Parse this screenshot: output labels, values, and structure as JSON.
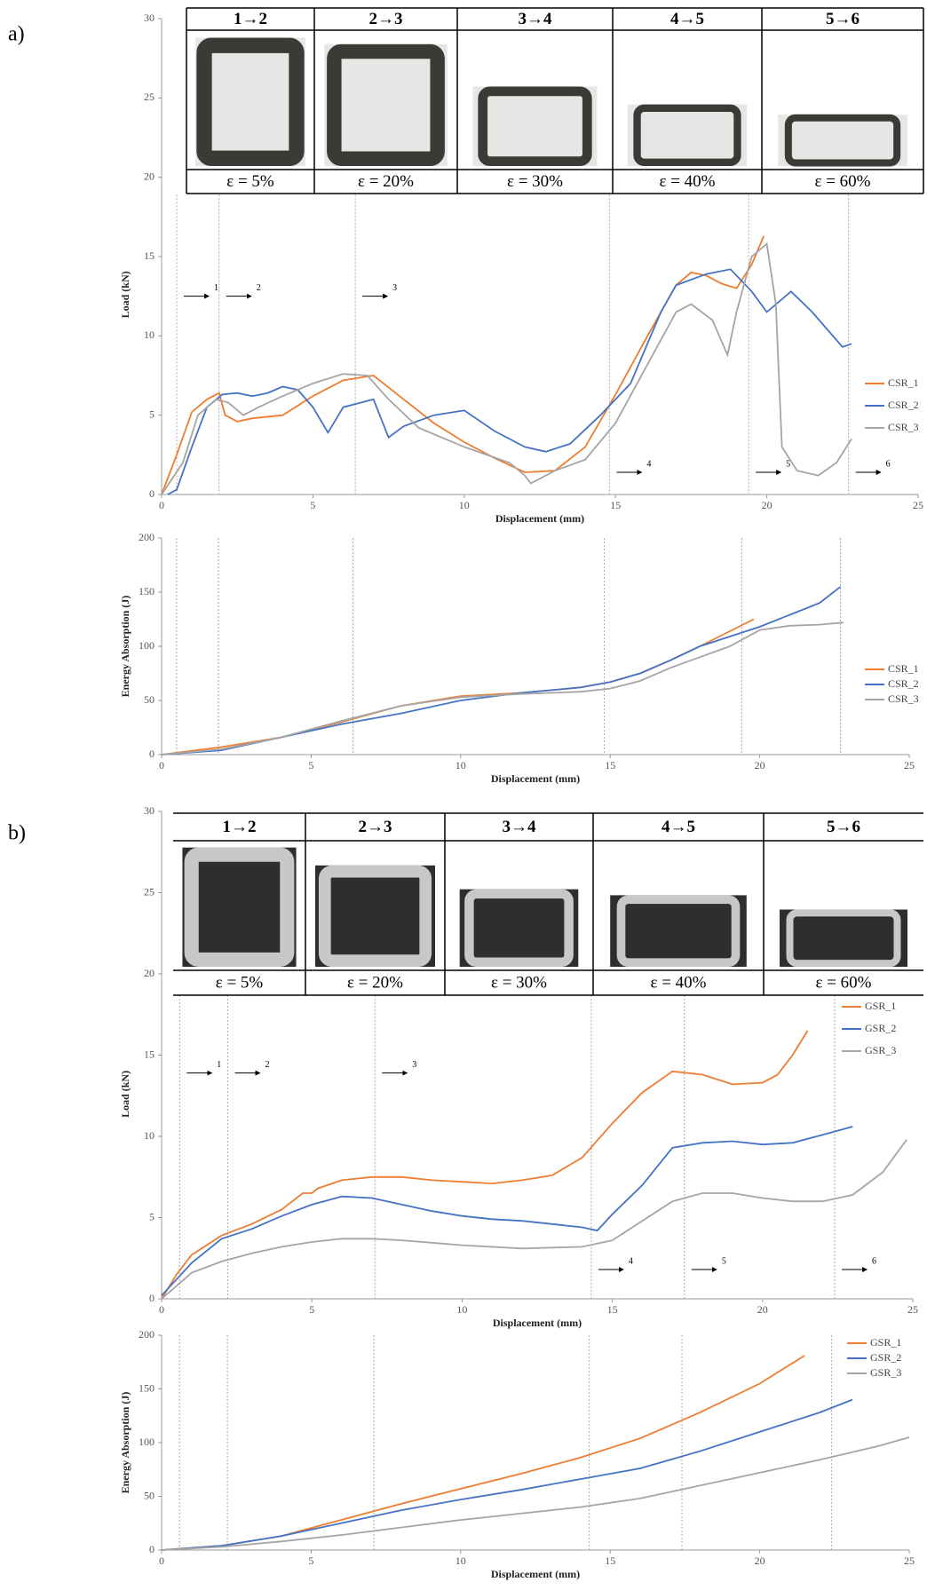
{
  "panels": [
    {
      "label": "a)",
      "stages": [
        "1→2",
        "2→3",
        "3→4",
        "4→5",
        "5→6"
      ],
      "strains": [
        "ε = 5%",
        "ε = 20%",
        "ε = 30%",
        "ε = 40%",
        "ε = 60%"
      ]
    },
    {
      "label": "b)",
      "stages": [
        "1→2",
        "2→3",
        "3→4",
        "4→5",
        "5→6"
      ],
      "strains": [
        "ε = 5%",
        "ε = 20%",
        "ε = 30%",
        "ε = 40%",
        "ε = 60%"
      ]
    }
  ],
  "chart_data": [
    {
      "type": "line",
      "xlabel": "Displacement (mm)",
      "ylabel": "Load (kN)",
      "xlim": [
        0,
        25
      ],
      "xticks": [
        0,
        5,
        10,
        15,
        20,
        25
      ],
      "ylim": [
        0,
        30
      ],
      "yticks": [
        0,
        5,
        10,
        15,
        20,
        25,
        30
      ],
      "legend": "right",
      "stage_lines": [
        0.5,
        1.9,
        6.4,
        14.8,
        19.4,
        22.7
      ],
      "stage_labels": [
        "1",
        "2",
        "3",
        "4",
        "5",
        "6"
      ],
      "series": [
        {
          "name": "CSR_1",
          "color": "#ed7d31",
          "x": [
            0,
            0.5,
            1,
            1.5,
            1.9,
            2.1,
            2.5,
            3,
            4,
            5,
            6,
            7,
            8,
            9,
            10,
            11,
            12,
            13,
            14,
            15,
            16,
            17,
            17.5,
            18,
            18.5,
            19,
            19.5,
            19.9
          ],
          "values": [
            0,
            2.5,
            5.2,
            6,
            6.4,
            5,
            4.6,
            4.8,
            5,
            6.2,
            7.2,
            7.5,
            6,
            4.5,
            3.3,
            2.3,
            1.4,
            1.5,
            3,
            6.3,
            9.8,
            13.2,
            14,
            13.8,
            13.3,
            13,
            14.5,
            16.3
          ]
        },
        {
          "name": "CSR_2",
          "color": "#4472c4",
          "x": [
            0.2,
            0.5,
            1,
            1.5,
            2,
            2.5,
            3,
            3.5,
            4,
            4.5,
            5,
            5.5,
            6,
            7,
            7.5,
            8,
            9,
            10,
            11,
            12,
            12.7,
            13.5,
            14.5,
            15.5,
            16.5,
            17,
            18,
            18.8,
            19.5,
            20,
            20.8,
            21.5,
            22.5,
            22.8
          ],
          "values": [
            0,
            0.3,
            3,
            5.5,
            6.3,
            6.4,
            6.2,
            6.4,
            6.8,
            6.6,
            5.5,
            3.9,
            5.5,
            6,
            3.6,
            4.3,
            5,
            5.3,
            4,
            3,
            2.7,
            3.2,
            5,
            7,
            11.5,
            13.2,
            13.9,
            14.2,
            12.8,
            11.5,
            12.8,
            11.5,
            9.3,
            9.5
          ]
        },
        {
          "name": "CSR_3",
          "color": "#a5a5a5",
          "x": [
            0,
            0.7,
            1.2,
            1.8,
            2.2,
            2.7,
            3.2,
            4,
            5,
            6,
            6.8,
            7.5,
            8.5,
            10,
            11.5,
            12,
            12.2,
            13,
            14,
            15,
            16,
            17,
            17.5,
            18.2,
            18.7,
            19,
            19.5,
            20,
            20.3,
            20.5,
            21,
            21.7,
            22.3,
            22.8
          ],
          "values": [
            0,
            2,
            5,
            6,
            5.8,
            5,
            5.5,
            6.2,
            7,
            7.6,
            7.5,
            6,
            4.2,
            3,
            2,
            1.2,
            0.7,
            1.5,
            2.2,
            4.5,
            8,
            11.5,
            12,
            11,
            8.8,
            11.5,
            15,
            15.8,
            12,
            3,
            1.5,
            1.2,
            2,
            3.5
          ]
        }
      ]
    },
    {
      "type": "line",
      "xlabel": "Displacement (mm)",
      "ylabel": "Energy Absorption (J)",
      "xlim": [
        0,
        25
      ],
      "xticks": [
        0,
        5,
        10,
        15,
        20,
        25
      ],
      "ylim": [
        0,
        200
      ],
      "yticks": [
        0,
        50,
        100,
        150,
        200
      ],
      "legend": "right",
      "stage_lines": [
        0.5,
        1.9,
        6.4,
        14.8,
        19.4,
        22.7
      ],
      "series": [
        {
          "name": "CSR_1",
          "color": "#ed7d31",
          "x": [
            0,
            2,
            4,
            6,
            8,
            10,
            12,
            14,
            15,
            16,
            17,
            18,
            19.8
          ],
          "values": [
            0,
            7,
            16,
            30,
            45,
            54,
            57,
            62,
            67,
            75,
            87,
            100,
            125
          ]
        },
        {
          "name": "CSR_2",
          "color": "#4472c4",
          "x": [
            0,
            2,
            4,
            6,
            8,
            10,
            12,
            14,
            15,
            16,
            17,
            18,
            20,
            22,
            22.7
          ],
          "values": [
            0,
            4,
            16,
            28,
            38,
            50,
            57,
            62,
            67,
            75,
            87,
            100,
            118,
            140,
            155
          ]
        },
        {
          "name": "CSR_3",
          "color": "#a5a5a5",
          "x": [
            0,
            2,
            4,
            6,
            8,
            10,
            12,
            14,
            15,
            16,
            17,
            18,
            19,
            20,
            21,
            22,
            22.8
          ],
          "values": [
            0,
            5,
            16,
            31,
            45,
            53,
            56,
            58,
            61,
            68,
            80,
            90,
            100,
            115,
            119,
            120,
            122
          ]
        }
      ]
    },
    {
      "type": "line",
      "xlabel": "Displacement (mm)",
      "ylabel": "Load (kN)",
      "xlim": [
        0,
        25
      ],
      "xticks": [
        0,
        5,
        10,
        15,
        20,
        25
      ],
      "ylim": [
        0,
        30
      ],
      "yticks": [
        0,
        5,
        10,
        15,
        20,
        25,
        30
      ],
      "legend": "right",
      "stage_lines": [
        0.6,
        2.2,
        7.1,
        14.3,
        17.4,
        22.4
      ],
      "stage_labels": [
        "1",
        "2",
        "3",
        "4",
        "5",
        "6"
      ],
      "series": [
        {
          "name": "GSR_1",
          "color": "#ed7d31",
          "x": [
            0,
            0.5,
            1,
            2,
            3,
            4,
            4.7,
            5,
            5.2,
            6,
            7,
            8,
            9,
            10,
            11,
            12,
            13,
            14,
            15,
            16,
            17,
            18,
            19,
            20,
            20.5,
            21,
            21.5
          ],
          "values": [
            0,
            1.5,
            2.7,
            3.9,
            4.6,
            5.5,
            6.5,
            6.5,
            6.8,
            7.3,
            7.5,
            7.5,
            7.3,
            7.2,
            7.1,
            7.3,
            7.6,
            8.7,
            10.8,
            12.7,
            14,
            13.8,
            13.2,
            13.3,
            13.8,
            15,
            16.5
          ]
        },
        {
          "name": "GSR_2",
          "color": "#4472c4",
          "x": [
            0,
            0.5,
            1,
            2,
            3,
            4,
            5,
            6,
            7,
            8,
            9,
            10,
            11,
            12,
            13,
            14,
            14.5,
            15,
            16,
            17,
            18,
            19,
            20,
            21,
            22,
            23
          ],
          "values": [
            0.2,
            1.2,
            2.2,
            3.7,
            4.3,
            5.1,
            5.8,
            6.3,
            6.2,
            5.8,
            5.4,
            5.1,
            4.9,
            4.8,
            4.6,
            4.4,
            4.2,
            5.2,
            7,
            9.3,
            9.6,
            9.7,
            9.5,
            9.6,
            10.1,
            10.6
          ]
        },
        {
          "name": "GSR_3",
          "color": "#a5a5a5",
          "x": [
            0,
            0.5,
            1,
            2,
            3,
            4,
            5,
            6,
            7,
            8,
            10,
            12,
            14,
            15,
            16,
            17,
            18,
            19,
            20,
            21,
            22,
            23,
            24,
            24.8
          ],
          "values": [
            0,
            0.8,
            1.6,
            2.3,
            2.8,
            3.2,
            3.5,
            3.7,
            3.7,
            3.6,
            3.3,
            3.1,
            3.2,
            3.6,
            4.8,
            6,
            6.5,
            6.5,
            6.2,
            6,
            6,
            6.4,
            7.8,
            9.8
          ]
        }
      ]
    },
    {
      "type": "line",
      "xlabel": "Displacement (mm)",
      "ylabel": "Energy Absorption (J)",
      "xlim": [
        0,
        25
      ],
      "xticks": [
        0,
        5,
        10,
        15,
        20,
        25
      ],
      "ylim": [
        0,
        200
      ],
      "yticks": [
        0,
        50,
        100,
        150,
        200
      ],
      "legend": "right",
      "stage_lines": [
        0.6,
        2.2,
        7.1,
        14.3,
        17.4,
        22.4
      ],
      "series": [
        {
          "name": "GSR_1",
          "color": "#ed7d31",
          "x": [
            0,
            2,
            4,
            6,
            8,
            10,
            12,
            14,
            16,
            18,
            20,
            21.5
          ],
          "values": [
            0,
            4,
            13,
            28,
            43,
            57,
            71,
            86,
            104,
            128,
            155,
            181
          ]
        },
        {
          "name": "GSR_2",
          "color": "#4472c4",
          "x": [
            0,
            2,
            4,
            6,
            8,
            10,
            12,
            14,
            16,
            18,
            20,
            22,
            23.1
          ],
          "values": [
            0,
            4,
            13,
            25,
            37,
            47,
            56,
            66,
            76,
            92,
            110,
            128,
            140
          ]
        },
        {
          "name": "GSR_3",
          "color": "#a5a5a5",
          "x": [
            0,
            2,
            4,
            6,
            8,
            10,
            12,
            14,
            16,
            18,
            20,
            22,
            24,
            25
          ],
          "values": [
            0,
            3,
            8,
            14,
            21,
            28,
            34,
            40,
            48,
            60,
            72,
            84,
            97,
            105
          ]
        }
      ]
    }
  ]
}
